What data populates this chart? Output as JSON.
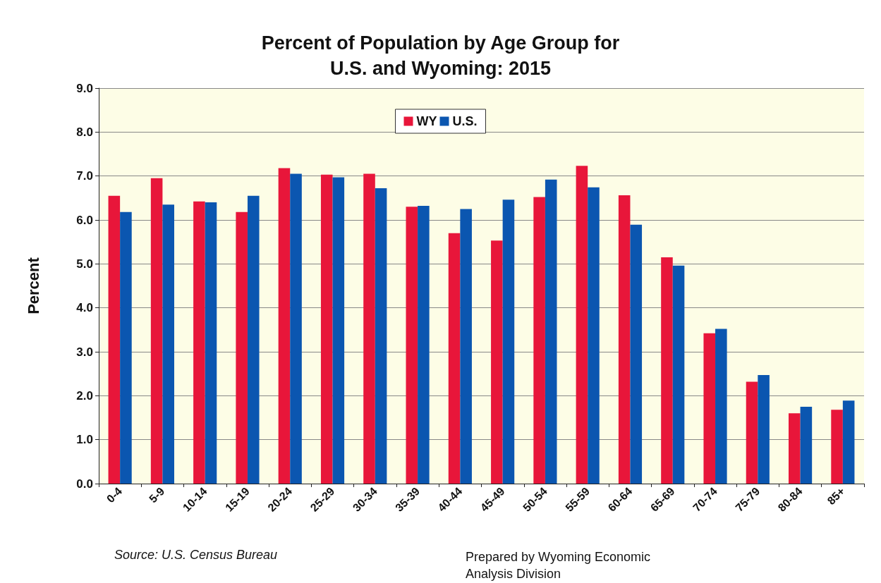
{
  "chart_data": {
    "type": "bar",
    "title": "Percent of Population by Age Group for\nU.S. and Wyoming: 2015",
    "ylabel": "Percent",
    "categories": [
      "0-4",
      "5-9",
      "10-14",
      "15-19",
      "20-24",
      "25-29",
      "30-34",
      "35-39",
      "40-44",
      "45-49",
      "50-54",
      "55-59",
      "60-64",
      "65-69",
      "70-74",
      "75-79",
      "80-84",
      "85+"
    ],
    "series": [
      {
        "name": "WY",
        "color": "#e8163a",
        "values": [
          6.55,
          6.95,
          6.42,
          6.18,
          7.18,
          7.03,
          7.05,
          6.3,
          5.7,
          5.53,
          6.52,
          7.23,
          6.56,
          5.15,
          3.42,
          2.32,
          1.6,
          1.68
        ]
      },
      {
        "name": "U.S.",
        "color": "#0b56b0",
        "values": [
          6.18,
          6.35,
          6.4,
          6.55,
          7.05,
          6.97,
          6.72,
          6.32,
          6.25,
          6.46,
          6.92,
          6.74,
          5.89,
          4.96,
          3.52,
          2.47,
          1.75,
          1.89
        ]
      }
    ],
    "ylim": [
      0,
      9
    ],
    "yticks": [
      {
        "value": 0,
        "label": "0.0"
      },
      {
        "value": 1,
        "label": "1.0"
      },
      {
        "value": 2,
        "label": "2.0"
      },
      {
        "value": 3,
        "label": "3.0"
      },
      {
        "value": 4,
        "label": "4.0"
      },
      {
        "value": 5,
        "label": "5.0"
      },
      {
        "value": 6,
        "label": "6.0"
      },
      {
        "value": 7,
        "label": "7.0"
      },
      {
        "value": 8,
        "label": "8.0"
      },
      {
        "value": 9,
        "label": "9.0"
      }
    ],
    "grid": "y",
    "legend": "top",
    "annotations": [
      "Source: U.S. Census Bureau",
      "Prepared by Wyoming Economic\nAnalysis Division"
    ]
  }
}
